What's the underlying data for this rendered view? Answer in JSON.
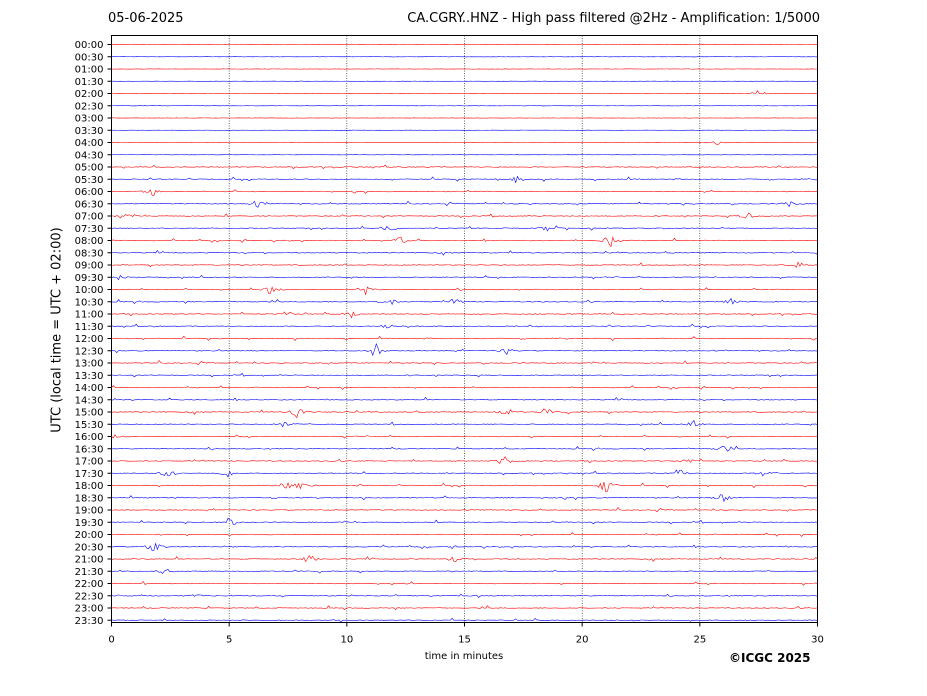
{
  "header": {
    "date": "05-06-2025",
    "title": "CA.CGRY..HNZ - High pass filtered @2Hz - Amplification: 1/5000"
  },
  "footer": {
    "copyright": "©ICGC 2025"
  },
  "chart_data": {
    "type": "line",
    "subtype": "helicorder",
    "xlabel": "time in minutes",
    "ylabel": "UTC (local time = UTC + 02:00)",
    "xlim": [
      0,
      30
    ],
    "x_ticks": [
      0,
      5,
      10,
      15,
      20,
      25,
      30
    ],
    "vertical_grid_at": [
      5,
      10,
      15,
      20,
      25
    ],
    "grid": "vertical dotted",
    "trace_colors": [
      "#ff0000",
      "#0000ff"
    ],
    "row_labels": [
      "00:00",
      "00:30",
      "01:00",
      "01:30",
      "02:00",
      "02:30",
      "03:00",
      "03:30",
      "04:00",
      "04:30",
      "05:00",
      "05:30",
      "06:00",
      "06:30",
      "07:00",
      "07:30",
      "08:00",
      "08:30",
      "09:00",
      "09:30",
      "10:00",
      "10:30",
      "11:00",
      "11:30",
      "12:00",
      "12:30",
      "13:00",
      "13:30",
      "14:00",
      "14:30",
      "15:00",
      "15:30",
      "16:00",
      "16:30",
      "17:00",
      "17:30",
      "18:00",
      "18:30",
      "19:00",
      "19:30",
      "20:00",
      "20:30",
      "21:00",
      "21:30",
      "22:00",
      "22:30",
      "23:00",
      "23:30"
    ],
    "activity_windows": [
      [
        4.5,
        23.0
      ]
    ],
    "bursts": [
      {
        "row": "02:00",
        "x": 27.5,
        "amp": 4
      },
      {
        "row": "04:00",
        "x": 25.8,
        "amp": 3
      },
      {
        "row": "05:30",
        "x": 17.2,
        "amp": 4
      },
      {
        "row": "06:00",
        "x": 1.7,
        "amp": 4
      },
      {
        "row": "06:30",
        "x": 6.2,
        "amp": 4
      },
      {
        "row": "06:30",
        "x": 28.8,
        "amp": 4
      },
      {
        "row": "07:00",
        "x": 0.5,
        "amp": 4
      },
      {
        "row": "07:00",
        "x": 27.0,
        "amp": 5
      },
      {
        "row": "07:30",
        "x": 11.8,
        "amp": 6
      },
      {
        "row": "07:30",
        "x": 18.6,
        "amp": 6
      },
      {
        "row": "08:00",
        "x": 12.3,
        "amp": 5
      },
      {
        "row": "08:00",
        "x": 21.2,
        "amp": 8
      },
      {
        "row": "09:00",
        "x": 29.2,
        "amp": 4
      },
      {
        "row": "09:30",
        "x": 0.3,
        "amp": 4
      },
      {
        "row": "10:00",
        "x": 6.8,
        "amp": 5
      },
      {
        "row": "10:00",
        "x": 10.8,
        "amp": 5
      },
      {
        "row": "10:30",
        "x": 11.8,
        "amp": 5
      },
      {
        "row": "10:30",
        "x": 14.6,
        "amp": 4
      },
      {
        "row": "10:30",
        "x": 26.3,
        "amp": 5
      },
      {
        "row": "11:00",
        "x": 7.4,
        "amp": 4
      },
      {
        "row": "11:00",
        "x": 10.2,
        "amp": 5
      },
      {
        "row": "11:30",
        "x": 11.8,
        "amp": 4
      },
      {
        "row": "12:30",
        "x": 11.2,
        "amp": 9
      },
      {
        "row": "12:30",
        "x": 16.8,
        "amp": 4
      },
      {
        "row": "15:00",
        "x": 7.9,
        "amp": 10
      },
      {
        "row": "15:00",
        "x": 16.8,
        "amp": 5
      },
      {
        "row": "15:00",
        "x": 18.5,
        "amp": 4
      },
      {
        "row": "15:30",
        "x": 7.4,
        "amp": 5
      },
      {
        "row": "15:30",
        "x": 24.7,
        "amp": 5
      },
      {
        "row": "16:00",
        "x": 0.2,
        "amp": 4
      },
      {
        "row": "16:30",
        "x": 26.0,
        "amp": 6
      },
      {
        "row": "17:00",
        "x": 16.7,
        "amp": 9
      },
      {
        "row": "17:00",
        "x": 24.5,
        "amp": 4
      },
      {
        "row": "17:30",
        "x": 2.4,
        "amp": 8
      },
      {
        "row": "17:30",
        "x": 4.9,
        "amp": 5
      },
      {
        "row": "17:30",
        "x": 24.1,
        "amp": 6
      },
      {
        "row": "17:30",
        "x": 27.8,
        "amp": 6
      },
      {
        "row": "18:00",
        "x": 7.5,
        "amp": 6
      },
      {
        "row": "18:00",
        "x": 8.1,
        "amp": 6
      },
      {
        "row": "18:00",
        "x": 21.0,
        "amp": 12
      },
      {
        "row": "18:30",
        "x": 26.0,
        "amp": 7
      },
      {
        "row": "19:30",
        "x": 5.0,
        "amp": 5
      },
      {
        "row": "20:30",
        "x": 1.8,
        "amp": 7
      },
      {
        "row": "21:00",
        "x": 8.4,
        "amp": 6
      },
      {
        "row": "21:00",
        "x": 14.6,
        "amp": 5
      },
      {
        "row": "21:30",
        "x": 2.2,
        "amp": 3
      },
      {
        "row": "22:30",
        "x": 3.6,
        "amp": 2
      }
    ]
  }
}
